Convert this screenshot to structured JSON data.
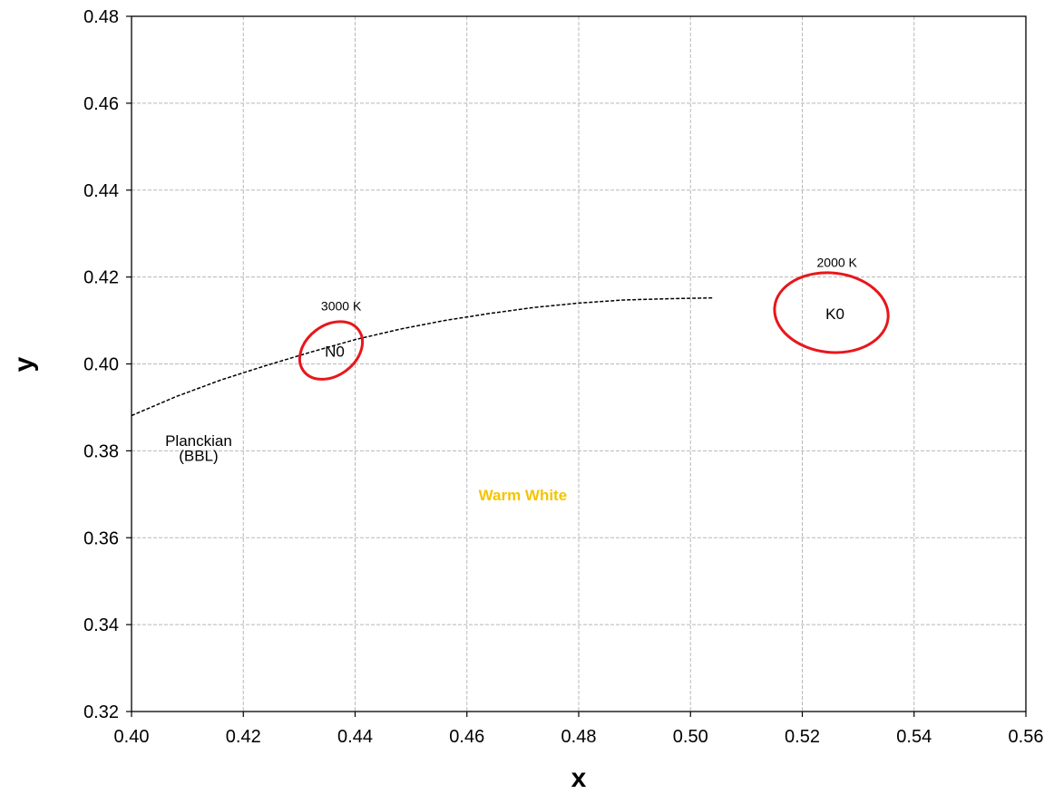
{
  "chart_data": {
    "type": "line",
    "title": "",
    "xlabel": "x",
    "ylabel": "y",
    "xlim": [
      0.4,
      0.56
    ],
    "ylim": [
      0.32,
      0.48
    ],
    "x_ticks": [
      "0.40",
      "0.42",
      "0.44",
      "0.46",
      "0.48",
      "0.50",
      "0.52",
      "0.54",
      "0.56"
    ],
    "y_ticks": [
      "0.32",
      "0.34",
      "0.36",
      "0.38",
      "0.40",
      "0.42",
      "0.44",
      "0.46",
      "0.48"
    ],
    "grid": true,
    "series": [
      {
        "name": "Planckian (BBL)",
        "style": "dashed",
        "color": "#000000",
        "x": [
          0.4,
          0.408,
          0.416,
          0.424,
          0.432,
          0.44,
          0.448,
          0.456,
          0.464,
          0.472,
          0.48,
          0.488,
          0.496,
          0.504
        ],
        "y": [
          0.3881,
          0.3925,
          0.3963,
          0.3996,
          0.4027,
          0.4056,
          0.408,
          0.41,
          0.4116,
          0.413,
          0.414,
          0.4147,
          0.415,
          0.4152
        ]
      }
    ],
    "ellipses": [
      {
        "label": "N0",
        "cx": 0.4357,
        "cy": 0.4031,
        "rx": 0.0045,
        "ry": 0.0079,
        "rotation_deg": 37,
        "color": "#e8161b"
      },
      {
        "label": "K0",
        "cx": 0.5252,
        "cy": 0.4118,
        "rx": 0.0071,
        "ry": 0.0131,
        "rotation_deg": -6,
        "color": "#e8161b"
      }
    ],
    "annotations": [
      {
        "id": "cct-3000",
        "text": "3000 K",
        "x": 0.4375,
        "y": 0.4123
      },
      {
        "id": "cct-2000",
        "text": "2000 K",
        "x": 0.5262,
        "y": 0.4223
      },
      {
        "id": "planckian-line1",
        "text": "Planckian",
        "x": 0.412,
        "y": 0.3811
      },
      {
        "id": "planckian-line2",
        "text": "(BBL)",
        "x": 0.412,
        "y": 0.3777
      }
    ],
    "region_label": {
      "text": "Warm White",
      "x": 0.47,
      "y": 0.3686,
      "color": "#f5c400"
    }
  }
}
